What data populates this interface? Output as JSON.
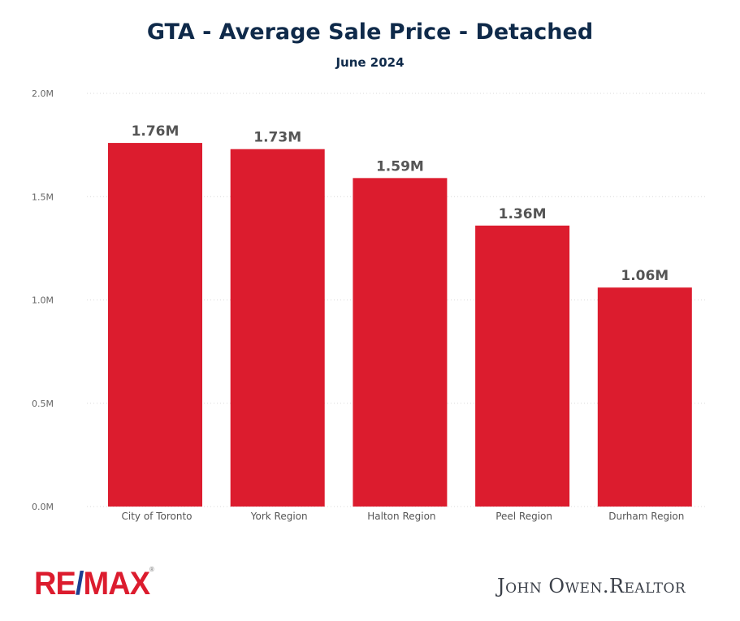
{
  "chart_data": {
    "type": "bar",
    "title": "GTA - Average Sale Price - Detached",
    "subtitle": "June 2024",
    "categories": [
      "City of Toronto",
      "York Region",
      "Halton Region",
      "Peel Region",
      "Durham Region"
    ],
    "values": [
      1.76,
      1.73,
      1.59,
      1.36,
      1.06
    ],
    "data_labels": [
      "1.76M",
      "1.73M",
      "1.59M",
      "1.36M",
      "1.06M"
    ],
    "y_ticks": [
      0,
      0.5,
      1.0,
      1.5,
      2.0
    ],
    "y_tick_labels": [
      "0.0M",
      "0.5M",
      "1.0M",
      "1.5M",
      "2.0M"
    ],
    "ylim": [
      0,
      2.0
    ],
    "unit": "M",
    "grid": true,
    "bar_color": "#dc1c2e",
    "label_color": "#555555"
  },
  "footer": {
    "logo_left": "RE/MAX",
    "logo_right": "John Owen.Realtor"
  }
}
